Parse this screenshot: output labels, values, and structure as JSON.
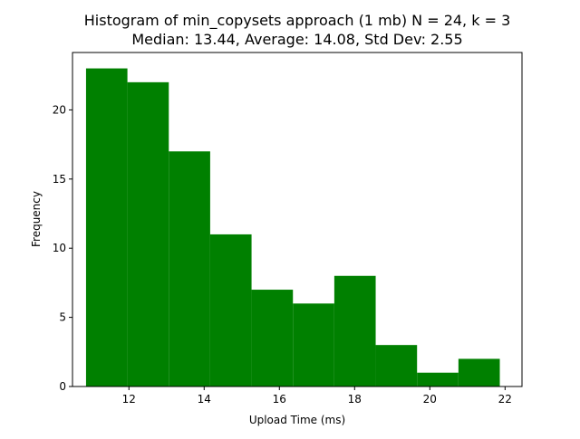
{
  "chart_data": {
    "type": "bar",
    "title": "Histogram of min_copysets approach (1 mb) N = 24, k = 3",
    "subtitle": "Median: 13.44, Average: 14.08, Std Dev: 2.55",
    "xlabel": "Upload Time (ms)",
    "ylabel": "Frequency",
    "xlim": [
      10.5,
      22.45
    ],
    "ylim": [
      0,
      24.15
    ],
    "xticks": [
      12,
      14,
      16,
      18,
      20,
      22
    ],
    "yticks": [
      0,
      5,
      10,
      15,
      20
    ],
    "bar_color": "#008000",
    "grid": false,
    "bins": [
      {
        "start": 10.86,
        "end": 11.96,
        "count": 23
      },
      {
        "start": 11.96,
        "end": 13.06,
        "count": 22
      },
      {
        "start": 13.06,
        "end": 14.16,
        "count": 17
      },
      {
        "start": 14.16,
        "end": 15.26,
        "count": 11
      },
      {
        "start": 15.26,
        "end": 16.36,
        "count": 7
      },
      {
        "start": 16.36,
        "end": 17.46,
        "count": 6
      },
      {
        "start": 17.46,
        "end": 18.56,
        "count": 8
      },
      {
        "start": 18.56,
        "end": 19.66,
        "count": 3
      },
      {
        "start": 19.66,
        "end": 20.76,
        "count": 1
      },
      {
        "start": 20.76,
        "end": 21.86,
        "count": 2
      }
    ]
  }
}
